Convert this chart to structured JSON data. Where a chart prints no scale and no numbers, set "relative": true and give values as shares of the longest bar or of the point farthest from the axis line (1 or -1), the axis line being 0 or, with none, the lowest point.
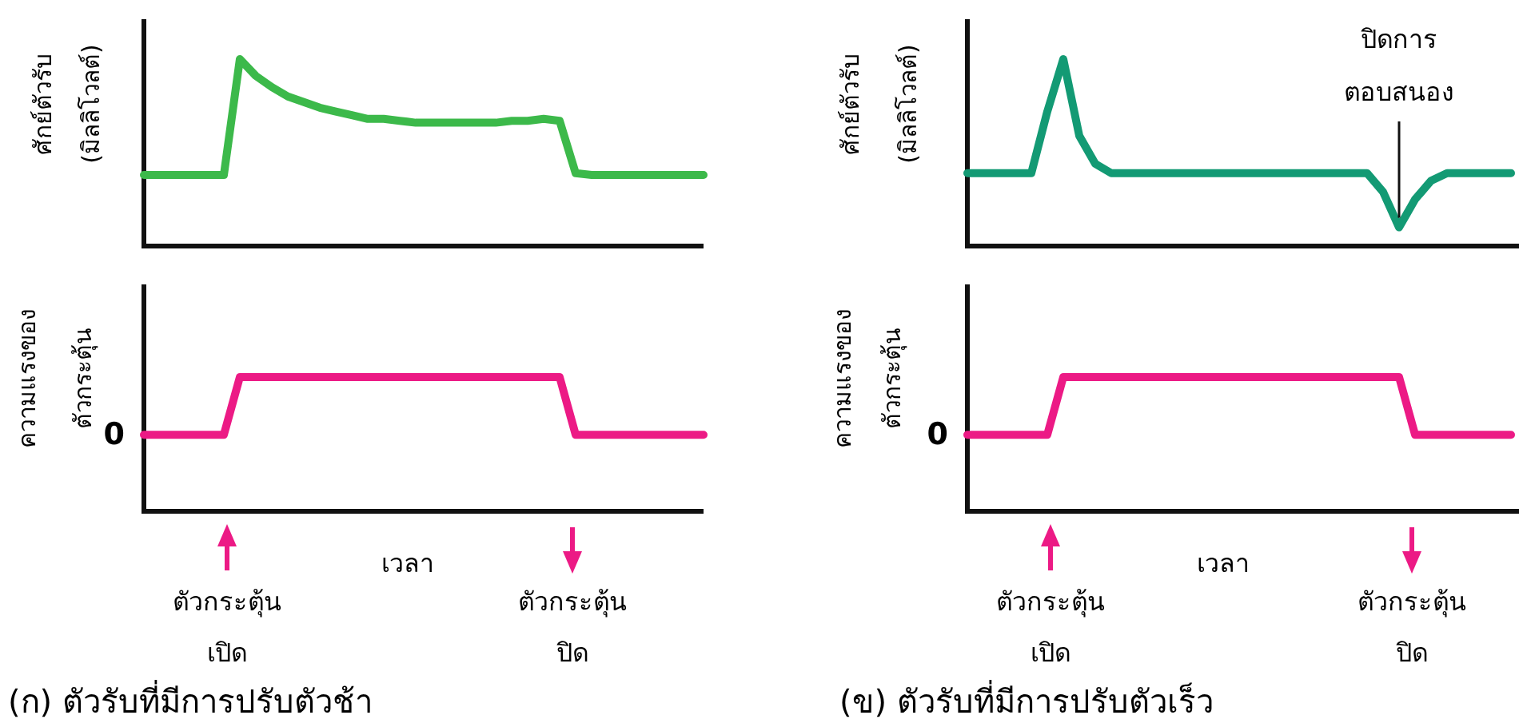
{
  "chart_data": [
    {
      "type": "line",
      "relative": true,
      "ylabel": "ศักย์ตัวรับ (มิลลิโวลต์)",
      "color": "#3cb94a",
      "categories": [
        null,
        null,
        null,
        null,
        null,
        null,
        null,
        null,
        null,
        null,
        null,
        null,
        null,
        null,
        null,
        null,
        null,
        null,
        null,
        null,
        null,
        null,
        null,
        null,
        null,
        null,
        null,
        null,
        null,
        null,
        null,
        null,
        null,
        null,
        null,
        null
      ],
      "values": [
        0.38,
        0.38,
        0.38,
        0.38,
        0.38,
        0.38,
        1,
        0.91,
        0.85,
        0.8,
        0.77,
        0.74,
        0.72,
        0.7,
        0.68,
        0.68,
        0.67,
        0.66,
        0.66,
        0.66,
        0.66,
        0.66,
        0.66,
        0.67,
        0.67,
        0.68,
        0.67,
        0.39,
        0.38,
        0.38,
        0.38,
        0.38,
        0.38,
        0.38,
        0.38,
        0.38
      ]
    },
    {
      "type": "line",
      "relative": true,
      "ylabel": "ความแรงของ ตัวกระตุ้น",
      "xlabel": "เวลา",
      "title": "(ก) ตัวรับที่มีการปรับตัวช้า",
      "color": "#ec1a85",
      "categories": [
        null,
        null,
        null,
        null,
        null,
        null,
        null,
        null,
        null,
        null,
        null,
        null,
        null,
        null,
        null,
        null,
        null,
        null,
        null,
        null,
        null,
        null,
        null,
        null,
        null,
        null,
        null,
        null,
        null,
        null,
        null,
        null,
        null,
        null,
        null,
        null
      ],
      "values": [
        0.57,
        0.57,
        0.57,
        0.57,
        0.57,
        0.57,
        1,
        1,
        1,
        1,
        1,
        1,
        1,
        1,
        1,
        1,
        1,
        1,
        1,
        1,
        1,
        1,
        1,
        1,
        1,
        1,
        1,
        0.57,
        0.57,
        0.57,
        0.57,
        0.57,
        0.57,
        0.57,
        0.57,
        0.57
      ],
      "annotations": [
        "ตัวกระตุ้น เปิด",
        "ตัวกระตุ้น ปิด",
        "0"
      ]
    },
    {
      "type": "line",
      "relative": true,
      "ylabel": "ศักย์ตัวรับ (มิลลิโวลต์)",
      "color": "#139a74",
      "categories": [
        null,
        null,
        null,
        null,
        null,
        null,
        null,
        null,
        null,
        null,
        null,
        null,
        null,
        null,
        null,
        null,
        null,
        null,
        null,
        null,
        null,
        null,
        null,
        null,
        null,
        null,
        null,
        null,
        null,
        null,
        null,
        null,
        null,
        null,
        null
      ],
      "values": [
        0.39,
        0.39,
        0.39,
        0.39,
        0.39,
        0.72,
        1,
        0.59,
        0.44,
        0.39,
        0.39,
        0.39,
        0.39,
        0.39,
        0.39,
        0.39,
        0.39,
        0.39,
        0.39,
        0.39,
        0.39,
        0.39,
        0.39,
        0.39,
        0.39,
        0.39,
        0.29,
        0.1,
        0.25,
        0.35,
        0.39,
        0.39,
        0.39,
        0.39,
        0.39
      ],
      "annotations": [
        "ปิดการ ตอบสนอง"
      ]
    },
    {
      "type": "line",
      "relative": true,
      "ylabel": "ความแรงของ ตัวกระตุ้น",
      "xlabel": "เวลา",
      "title": "(ข) ตัวรับที่มีการปรับตัวเร็ว",
      "color": "#ec1a85",
      "categories": [
        null,
        null,
        null,
        null,
        null,
        null,
        null,
        null,
        null,
        null,
        null,
        null,
        null,
        null,
        null,
        null,
        null,
        null,
        null,
        null,
        null,
        null,
        null,
        null,
        null,
        null,
        null,
        null,
        null,
        null,
        null,
        null,
        null,
        null,
        null
      ],
      "values": [
        0.57,
        0.57,
        0.57,
        0.57,
        0.57,
        0.57,
        1,
        1,
        1,
        1,
        1,
        1,
        1,
        1,
        1,
        1,
        1,
        1,
        1,
        1,
        1,
        1,
        1,
        1,
        1,
        1,
        1,
        1,
        0.57,
        0.57,
        0.57,
        0.57,
        0.57,
        0.57,
        0.57
      ],
      "annotations": [
        "ตัวกระตุ้น เปิด",
        "ตัวกระตุ้น ปิด",
        "0"
      ]
    }
  ]
}
